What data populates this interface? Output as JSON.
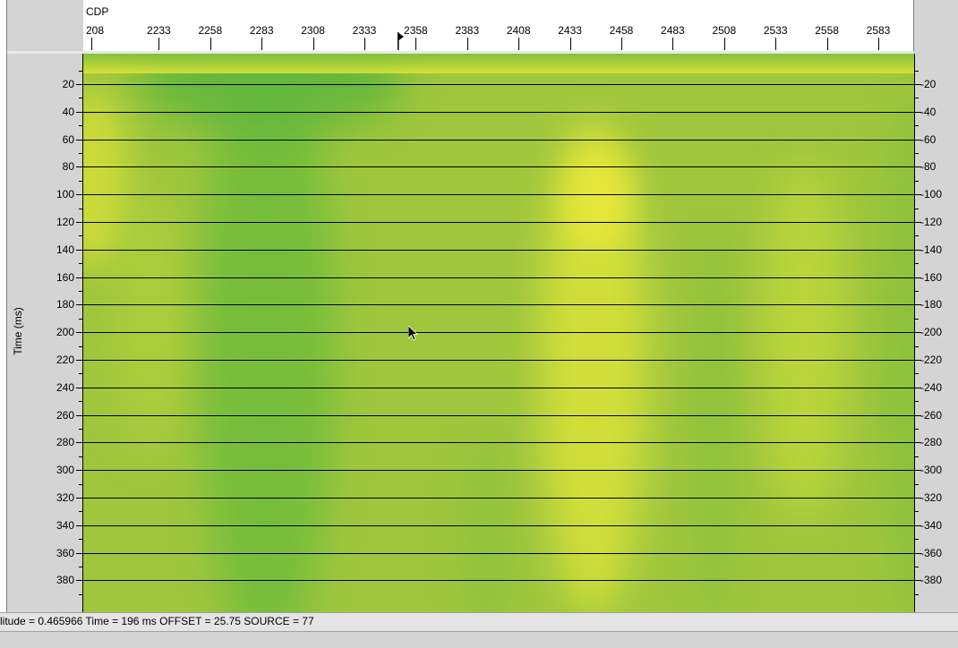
{
  "header": {
    "x_axis_title": "CDP",
    "x_tick_labels": [
      "208",
      "2233",
      "2258",
      "2283",
      "2308",
      "2333",
      "2358",
      "2383",
      "2408",
      "2433",
      "2458",
      "2483",
      "2508",
      "2533",
      "2558",
      "2583"
    ]
  },
  "y_axis": {
    "title": "Time (ms)",
    "tick_labels": [
      "20",
      "40",
      "60",
      "80",
      "100",
      "120",
      "140",
      "160",
      "180",
      "200",
      "220",
      "240",
      "260",
      "280",
      "300",
      "320",
      "340",
      "360",
      "380"
    ]
  },
  "status": {
    "text": "litude = 0.465966  Time = 196 ms  OFFSET = 25.75  SOURCE = 77"
  },
  "colors": {
    "dark_green": "#6fbe3c",
    "mid_green": "#9fc63d",
    "yellow": "#e2e53a",
    "grid_line": "#000000"
  },
  "icons": {
    "cursor": "mouse-pointer-icon",
    "marker": "position-marker-icon"
  }
}
